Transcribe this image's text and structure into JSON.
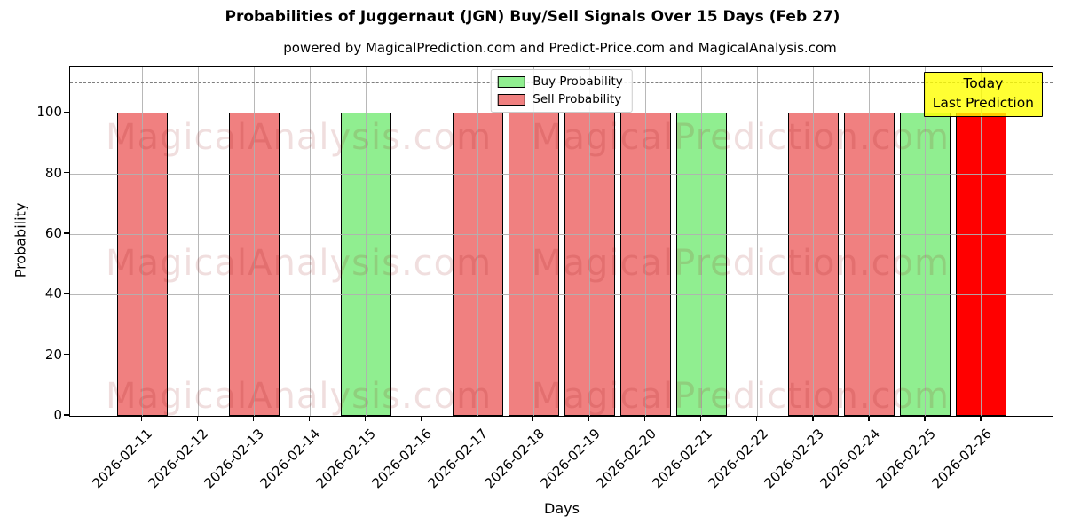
{
  "title": "Probabilities of Juggernaut (JGN) Buy/Sell Signals Over 15 Days (Feb 27)",
  "subtitle": "powered by MagicalPrediction.com and Predict-Price.com and MagicalAnalysis.com",
  "chart_data": {
    "type": "bar",
    "title": "Probabilities of Juggernaut (JGN) Buy/Sell Signals Over 15 Days (Feb 27)",
    "subtitle": "powered by MagicalPrediction.com and Predict-Price.com and MagicalAnalysis.com",
    "xlabel": "Days",
    "ylabel": "Probability",
    "ylim": [
      0,
      115
    ],
    "yticks": [
      0,
      20,
      40,
      60,
      80,
      100
    ],
    "grid": true,
    "legend_position": "upper center",
    "dashed_line_y": 110,
    "categories": [
      "2026-02-11",
      "2026-02-12",
      "2026-02-13",
      "2026-02-14",
      "2026-02-15",
      "2026-02-16",
      "2026-02-17",
      "2026-02-18",
      "2026-02-19",
      "2026-02-20",
      "2026-02-21",
      "2026-02-22",
      "2026-02-23",
      "2026-02-24",
      "2026-02-25",
      "2026-02-26"
    ],
    "series": [
      {
        "name": "Buy Probability",
        "values": [
          0,
          0,
          0,
          0,
          100,
          0,
          0,
          0,
          0,
          0,
          100,
          0,
          0,
          0,
          100,
          0
        ]
      },
      {
        "name": "Sell Probability",
        "values": [
          100,
          0,
          100,
          0,
          0,
          0,
          100,
          100,
          100,
          100,
          0,
          0,
          100,
          100,
          0,
          100
        ]
      }
    ],
    "slots": [
      {
        "date": "2026-02-11",
        "signal": "sell",
        "value": 100
      },
      {
        "date": "2026-02-12",
        "signal": "none",
        "value": 0
      },
      {
        "date": "2026-02-13",
        "signal": "sell",
        "value": 100
      },
      {
        "date": "2026-02-14",
        "signal": "none",
        "value": 0
      },
      {
        "date": "2026-02-15",
        "signal": "buy",
        "value": 100
      },
      {
        "date": "2026-02-16",
        "signal": "none",
        "value": 0
      },
      {
        "date": "2026-02-17",
        "signal": "sell",
        "value": 100
      },
      {
        "date": "2026-02-18",
        "signal": "sell",
        "value": 100
      },
      {
        "date": "2026-02-19",
        "signal": "sell",
        "value": 100
      },
      {
        "date": "2026-02-20",
        "signal": "sell",
        "value": 100
      },
      {
        "date": "2026-02-21",
        "signal": "buy",
        "value": 100
      },
      {
        "date": "2026-02-22",
        "signal": "none",
        "value": 0
      },
      {
        "date": "2026-02-23",
        "signal": "sell",
        "value": 100
      },
      {
        "date": "2026-02-24",
        "signal": "sell",
        "value": 100
      },
      {
        "date": "2026-02-25",
        "signal": "buy",
        "value": 100
      },
      {
        "date": "2026-02-26",
        "signal": "today",
        "value": 100
      }
    ],
    "legend": [
      {
        "key": "buy",
        "label": "Buy Probability"
      },
      {
        "key": "sell",
        "label": "Sell Probability"
      }
    ],
    "colors": {
      "buy": "#90EE90",
      "sell": "#F08080",
      "today": "#FF0000",
      "grid": "#b0b0b0",
      "dashed_line": "#7f7f7f",
      "annotation_bg": "#FFFF00",
      "bar_edge": "#000000"
    },
    "annotation": {
      "lines": [
        "Today",
        "Last Prediction"
      ]
    },
    "watermarks": [
      "MagicalAnalysis.com",
      "MagicalPrediction.com"
    ]
  }
}
